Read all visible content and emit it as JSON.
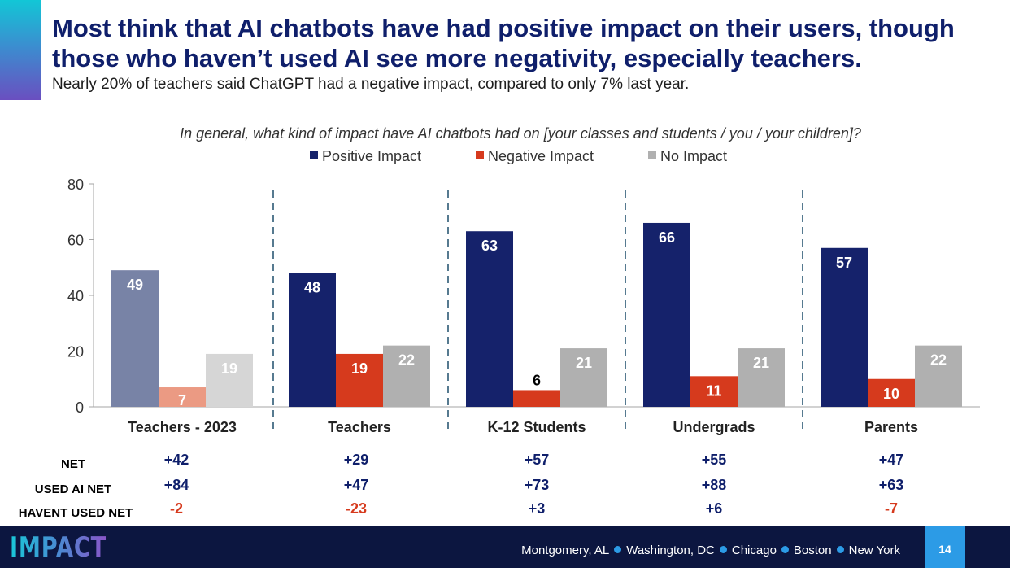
{
  "header": {
    "title": "Most think that AI chatbots have had positive impact on their users, though those who haven’t used AI see more negativity, especially teachers.",
    "subtitle": "Nearly 20% of teachers said ChatGPT had a negative impact, compared to only 7% last year."
  },
  "colors": {
    "positive": "#15226b",
    "negative": "#d63a1d",
    "none": "#b0b0b0",
    "positive_2023": "#7883a6",
    "negative_2023": "#eb9a83",
    "none_2023": "#d6d6d6",
    "net_positive": "#0f1f6b",
    "net_negative": "#d63a1d",
    "title": "#0f1f6b"
  },
  "chart_data": {
    "type": "bar",
    "title": "In general, what kind of impact have AI chatbots had on [your classes and students / you / your children]?",
    "categories": [
      "Teachers - 2023",
      "Teachers",
      "K-12 Students",
      "Undergrads",
      "Parents"
    ],
    "series": [
      {
        "name": "Positive Impact",
        "values": [
          49,
          48,
          63,
          66,
          57
        ]
      },
      {
        "name": "Negative Impact",
        "values": [
          7,
          19,
          6,
          11,
          10
        ]
      },
      {
        "name": "No Impact",
        "values": [
          19,
          22,
          21,
          21,
          22
        ]
      }
    ],
    "ylim": [
      0,
      80
    ],
    "yticks": [
      0,
      20,
      40,
      60,
      80
    ],
    "legend": "top",
    "grid": false,
    "dashed_dividers_between_groups": true
  },
  "net_table": {
    "rows": [
      {
        "label": "NET",
        "values": [
          "+42",
          "+29",
          "+57",
          "+55",
          "+47"
        ]
      },
      {
        "label": "USED AI NET",
        "values": [
          "+84",
          "+47",
          "+73",
          "+88",
          "+63"
        ]
      },
      {
        "label": "HAVENT USED NET",
        "values": [
          "-2",
          "-23",
          "+3",
          "+6",
          "-7"
        ]
      }
    ]
  },
  "footer": {
    "logo": "IMPACT",
    "locations": [
      "Montgomery, AL",
      "Washington, DC",
      "Chicago",
      "Boston",
      "New York"
    ],
    "page_number": "14"
  }
}
